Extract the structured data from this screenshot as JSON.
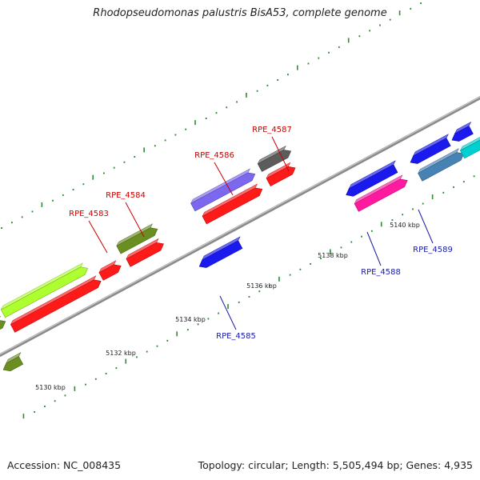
{
  "title": "Rhodopseudomonas palustris BisA53, complete genome",
  "footer": {
    "accession": "Accession: NC_008435",
    "topology": "Topology: circular; Length: 5,505,494 bp; Genes: 4,935"
  },
  "colors": {
    "backbone": "#8a8a8a",
    "tick": "#2e8b2e",
    "label_forward_gene": "#cc0000",
    "label_reverse_gene": "#1a1aa6"
  },
  "scale_labels": [
    "5130 kbp",
    "5132 kbp",
    "5134 kbp",
    "5136 kbp",
    "5138 kbp",
    "5140 kbp"
  ],
  "genes": [
    {
      "name": "RPE_4583",
      "strand": "forward",
      "color": "#ff1a1a"
    },
    {
      "name": "RPE_4584",
      "strand": "forward",
      "color": "#ff1a1a"
    },
    {
      "name": "RPE_4585",
      "strand": "reverse",
      "color": "#1a1aee"
    },
    {
      "name": "RPE_4586",
      "strand": "forward",
      "color": "#7b68ee"
    },
    {
      "name": "RPE_4587",
      "strand": "forward",
      "color": "#5c5c5c"
    },
    {
      "name": "RPE_4588",
      "strand": "reverse",
      "color": "#ff1aa0"
    },
    {
      "name": "RPE_4589",
      "strand": "reverse",
      "color": "#4682b4"
    }
  ],
  "unlabeled_feature_colors": [
    "#adff2f",
    "#6b8e23",
    "#ff1a1a",
    "#1a1aee",
    "#00d0d0",
    "#7b68ee"
  ]
}
